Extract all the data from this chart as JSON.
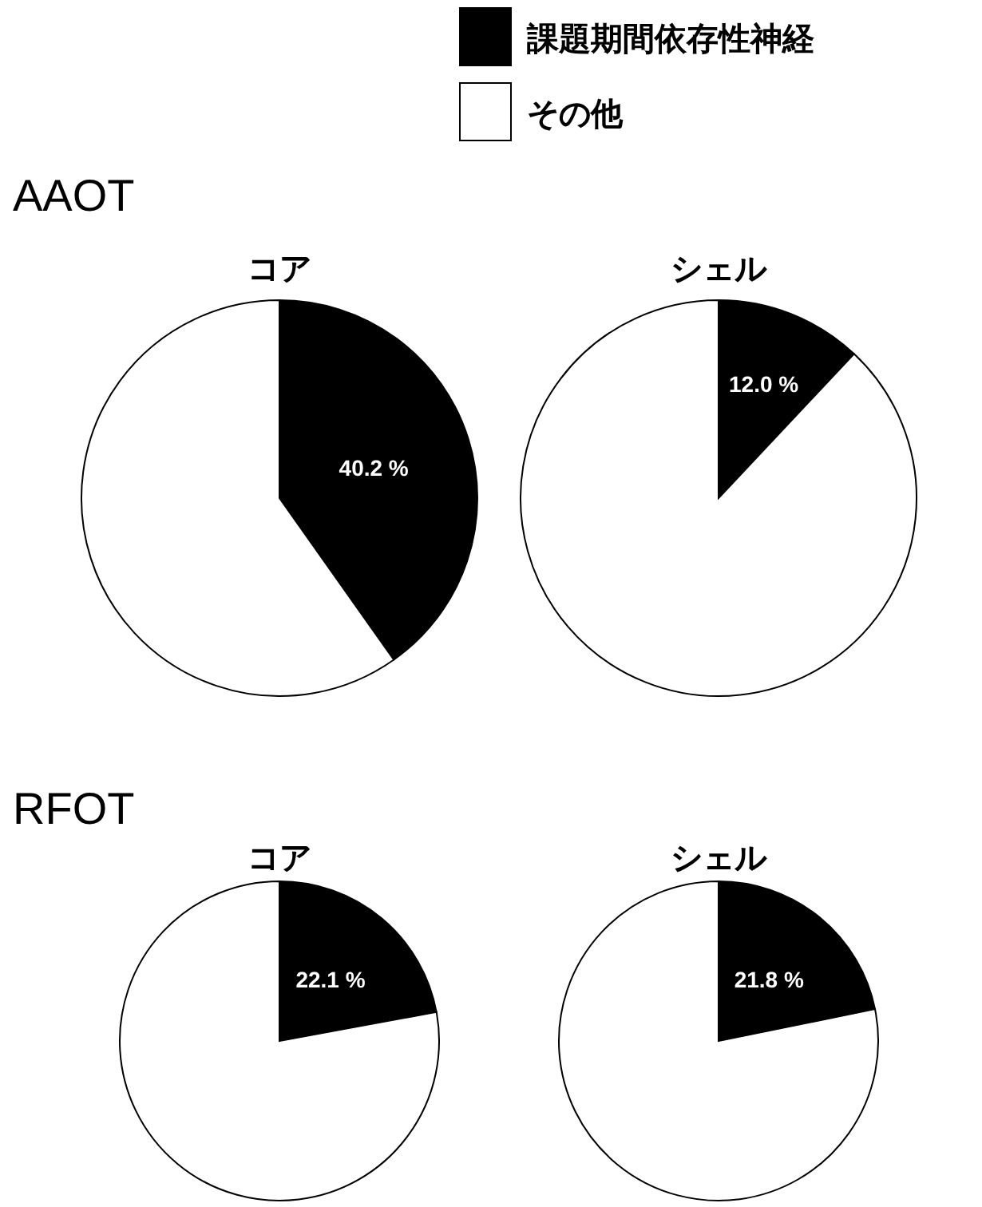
{
  "chart_data": [
    {
      "type": "pie",
      "title": "コア",
      "annotations": [
        "AAOT"
      ],
      "legend": "top right",
      "categories": [
        "課題期間依存性神経",
        "その他"
      ],
      "values": [
        40.2,
        59.8
      ],
      "colors": [
        "#000000",
        "#ffffff"
      ],
      "value_labels": [
        "40.2 %",
        null
      ]
    },
    {
      "type": "pie",
      "title": "シェル",
      "categories": [
        null,
        null
      ],
      "values": [
        12.0,
        88.0
      ],
      "colors": [
        "#000000",
        "#ffffff"
      ],
      "value_labels": [
        "12.0 %",
        null
      ]
    },
    {
      "type": "pie",
      "title": "コア",
      "annotations": [
        "RFOT"
      ],
      "categories": [
        null,
        null
      ],
      "values": [
        22.1,
        77.9
      ],
      "colors": [
        "#000000",
        "#ffffff"
      ],
      "value_labels": [
        "22.1 %",
        null
      ]
    },
    {
      "type": "pie",
      "title": "シェル",
      "categories": [
        null,
        null
      ],
      "values": [
        21.8,
        78.2
      ],
      "colors": [
        "#000000",
        "#ffffff"
      ],
      "value_labels": [
        "21.8 %",
        null
      ]
    }
  ]
}
